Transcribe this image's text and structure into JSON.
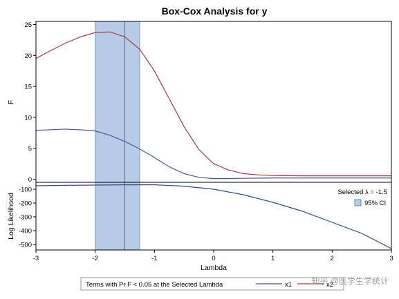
{
  "chart_data": {
    "type": "line",
    "title": "Box-Cox Analysis for y",
    "xlabel": "Lambda",
    "xlim": [
      -3,
      3
    ],
    "xticks": [
      -3,
      -2,
      -1,
      0,
      1,
      2,
      3
    ],
    "selected_lambda": -1.5,
    "ci_95": [
      -2.0,
      -1.25
    ],
    "panels": [
      {
        "ylabel": "F",
        "ylim": [
          -0.5,
          25.5
        ],
        "yticks": [
          0,
          5,
          10,
          15,
          20,
          25
        ],
        "series": [
          {
            "name": "x1",
            "color": "#44579e",
            "x": [
              -3,
              -2.5,
              -2.2,
              -2,
              -1.75,
              -1.5,
              -1.25,
              -1,
              -0.75,
              -0.5,
              -0.25,
              0,
              0.25,
              0.5,
              1,
              1.5,
              2,
              2.5,
              3
            ],
            "y": [
              7.9,
              8.1,
              7.95,
              7.8,
              7.1,
              6.1,
              4.9,
              3.5,
              2.0,
              0.9,
              0.3,
              0.1,
              0.1,
              0.15,
              0.2,
              0.2,
              0.2,
              0.2,
              0.2
            ]
          },
          {
            "name": "x2",
            "color": "#a33a3a",
            "x": [
              -3,
              -2.75,
              -2.5,
              -2.25,
              -2,
              -1.75,
              -1.5,
              -1.25,
              -1,
              -0.75,
              -0.5,
              -0.25,
              0,
              0.25,
              0.5,
              0.75,
              1,
              1.5,
              2,
              2.5,
              3
            ],
            "y": [
              19.5,
              20.8,
              22.0,
              23.0,
              23.7,
              23.8,
              23.0,
              21.0,
              17.5,
              13.0,
              8.5,
              4.8,
              2.5,
              1.5,
              0.9,
              0.7,
              0.6,
              0.55,
              0.55,
              0.55,
              0.55
            ]
          }
        ]
      },
      {
        "ylabel": "Log Likelihood",
        "ylim": [
          -540,
          -50
        ],
        "yticks": [
          -100,
          -200,
          -300,
          -400,
          -500
        ],
        "series": [
          {
            "name": "Log Likelihood",
            "color": "#2c4a8c",
            "x": [
              -3,
              -2.5,
              -2,
              -1.5,
              -1,
              -0.5,
              0,
              0.5,
              1,
              1.5,
              2,
              2.5,
              3
            ],
            "y": [
              -75,
              -72,
              -70,
              -68,
              -68,
              -78,
              -100,
              -140,
              -195,
              -260,
              -340,
              -420,
              -530
            ]
          }
        ]
      }
    ],
    "inset_label": "Selected  λ  = -1.5",
    "inset_legend": "95% CI",
    "legend_title": "Terms with Pr F < 0.05 at the Selected Lambda",
    "legend_items": [
      "x1",
      "x2"
    ]
  },
  "colors": {
    "ci_fill": "#b8cbe6",
    "ci_stroke": "#6b86b8",
    "axis": "#000000"
  },
  "watermark": "知乎 @医学生学统计"
}
